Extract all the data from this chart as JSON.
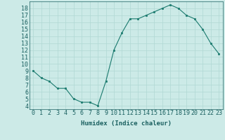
{
  "x": [
    0,
    1,
    2,
    3,
    4,
    5,
    6,
    7,
    8,
    9,
    10,
    11,
    12,
    13,
    14,
    15,
    16,
    17,
    18,
    19,
    20,
    21,
    22,
    23
  ],
  "y": [
    9,
    8,
    7.5,
    6.5,
    6.5,
    5,
    4.5,
    4.5,
    4,
    7.5,
    12,
    14.5,
    16.5,
    16.5,
    17,
    17.5,
    18,
    18.5,
    18,
    17,
    16.5,
    15,
    13,
    11.5
  ],
  "line_color": "#1a7a6e",
  "marker_color": "#1a7a6e",
  "bg_color": "#cceae7",
  "grid_color": "#b0d8d4",
  "xlabel": "Humidex (Indice chaleur)",
  "xlim": [
    -0.5,
    23.5
  ],
  "ylim": [
    3.5,
    19.0
  ],
  "ytick_values": [
    4,
    5,
    6,
    7,
    8,
    9,
    10,
    11,
    12,
    13,
    14,
    15,
    16,
    17,
    18
  ],
  "font_color": "#1a6060",
  "label_fontsize": 6.5,
  "tick_fontsize": 6
}
